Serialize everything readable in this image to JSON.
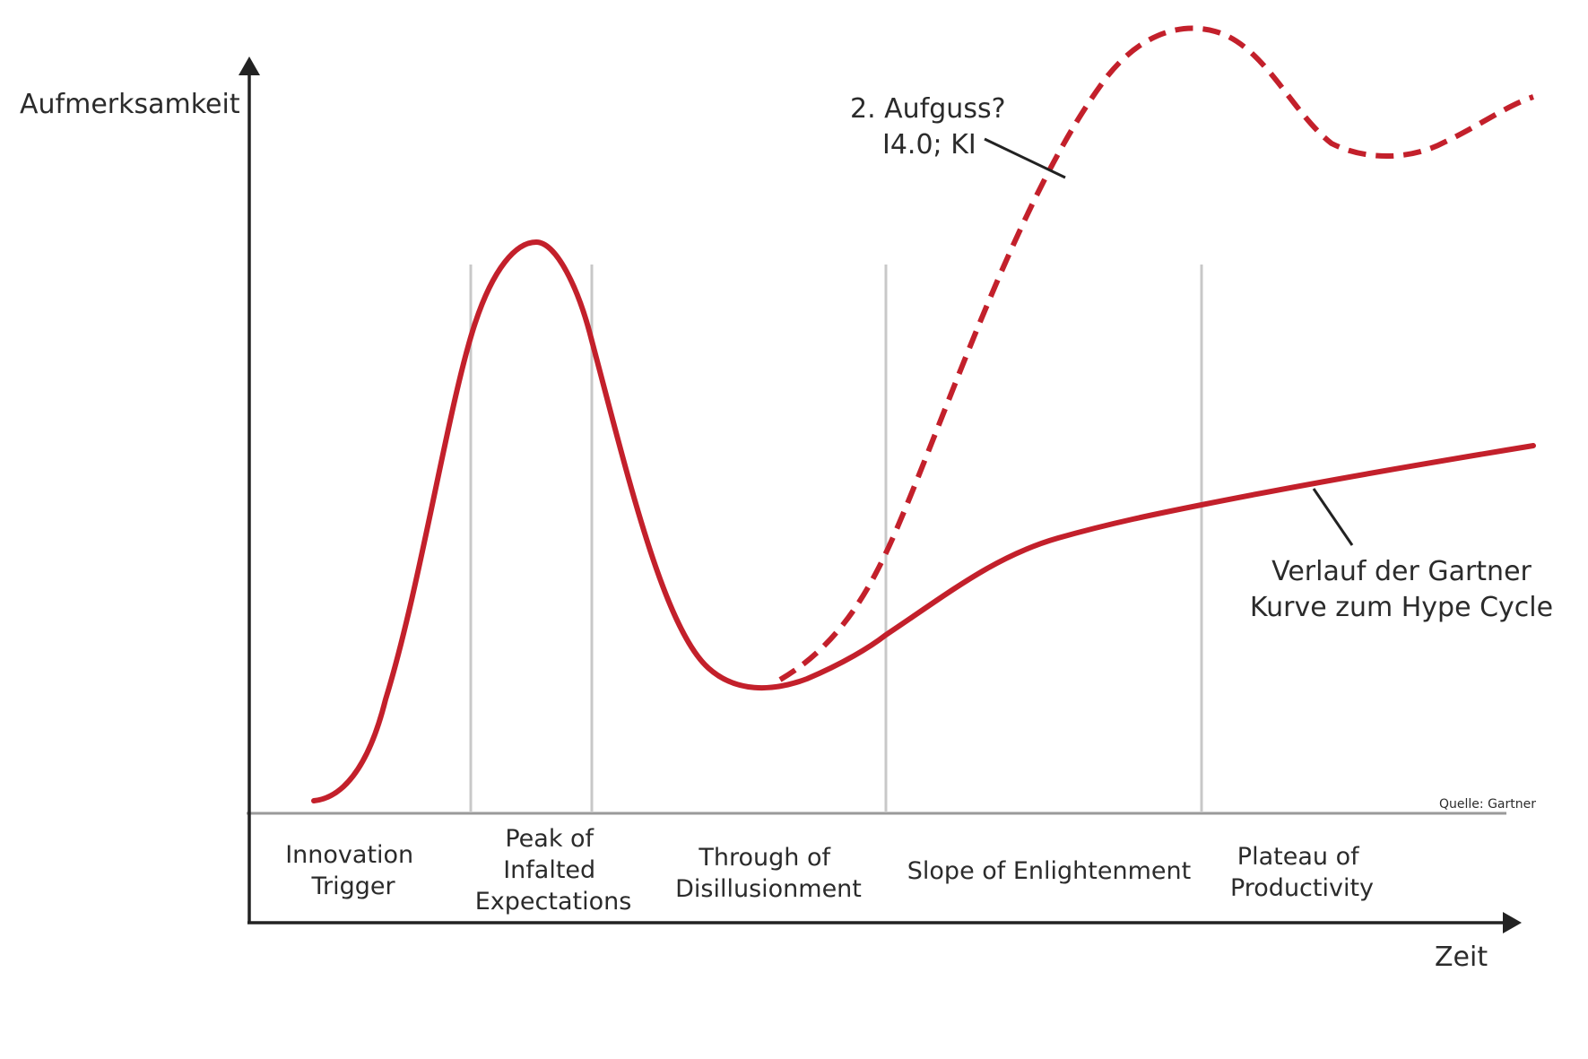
{
  "axes": {
    "y_label": "Aufmerksamkeit",
    "x_label": "Zeit"
  },
  "phases": [
    {
      "lines": [
        "Innovation",
        "Trigger"
      ]
    },
    {
      "lines": [
        "Peak of",
        "Infalted",
        "Expectations"
      ]
    },
    {
      "lines": [
        "Through of",
        "Disillusionment"
      ]
    },
    {
      "lines": [
        "Slope of Enlightenment"
      ]
    },
    {
      "lines": [
        "Plateau of",
        "Productivity"
      ]
    }
  ],
  "annotations": {
    "second_wave": {
      "line1": "2. Aufguss?",
      "line2": "I4.0; KI"
    },
    "gartner": {
      "line1": "Verlauf der Gartner",
      "line2": "Kurve zum Hype Cycle"
    }
  },
  "source": "Quelle: Gartner",
  "colors": {
    "curve": "#c3202b",
    "axis": "#222222",
    "divider": "#c8c8c8",
    "baseline": "#9a9a9a",
    "text": "#2b2b2b"
  }
}
